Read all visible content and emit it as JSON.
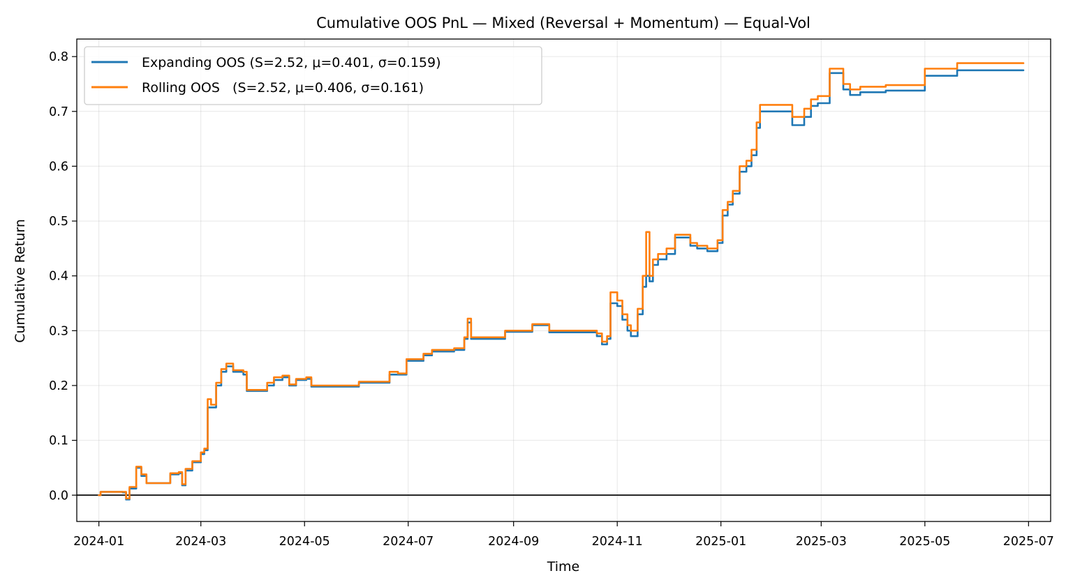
{
  "chart_data": {
    "type": "line",
    "title": "Cumulative OOS PnL — Mixed (Reversal + Momentum) — Equal-Vol",
    "xlabel": "Time",
    "ylabel": "Cumulative Return",
    "x_ticks": [
      "2024-01",
      "2024-03",
      "2024-05",
      "2024-07",
      "2024-09",
      "2024-11",
      "2025-01",
      "2025-03",
      "2025-05",
      "2025-07"
    ],
    "y_ticks": [
      "0.0",
      "0.1",
      "0.2",
      "0.3",
      "0.4",
      "0.5",
      "0.6",
      "0.7",
      "0.8"
    ],
    "xlim": [
      "2023-12-19",
      "2025-07-14"
    ],
    "ylim": [
      -0.048,
      0.832
    ],
    "grid": true,
    "zero_line": true,
    "legend_position": "upper-left",
    "series": [
      {
        "name": "Expanding OOS (S=2.52, μ=0.401, σ=0.159)",
        "color": "#1f77b4",
        "points": [
          [
            "2024-01-01",
            0.0
          ],
          [
            "2024-01-02",
            0.006
          ],
          [
            "2024-01-15",
            0.005
          ],
          [
            "2024-01-17",
            -0.008
          ],
          [
            "2024-01-19",
            0.012
          ],
          [
            "2024-01-23",
            0.05
          ],
          [
            "2024-01-26",
            0.035
          ],
          [
            "2024-01-29",
            0.022
          ],
          [
            "2024-02-10",
            0.022
          ],
          [
            "2024-02-12",
            0.038
          ],
          [
            "2024-02-17",
            0.04
          ],
          [
            "2024-02-19",
            0.018
          ],
          [
            "2024-02-21",
            0.045
          ],
          [
            "2024-02-25",
            0.06
          ],
          [
            "2024-03-01",
            0.075
          ],
          [
            "2024-03-03",
            0.082
          ],
          [
            "2024-03-05",
            0.16
          ],
          [
            "2024-03-07",
            0.16
          ],
          [
            "2024-03-10",
            0.2
          ],
          [
            "2024-03-13",
            0.225
          ],
          [
            "2024-03-16",
            0.235
          ],
          [
            "2024-03-20",
            0.225
          ],
          [
            "2024-03-26",
            0.22
          ],
          [
            "2024-03-28",
            0.19
          ],
          [
            "2024-04-05",
            0.19
          ],
          [
            "2024-04-09",
            0.2
          ],
          [
            "2024-04-13",
            0.21
          ],
          [
            "2024-04-18",
            0.215
          ],
          [
            "2024-04-22",
            0.2
          ],
          [
            "2024-04-26",
            0.21
          ],
          [
            "2024-05-02",
            0.212
          ],
          [
            "2024-05-05",
            0.198
          ],
          [
            "2024-05-31",
            0.198
          ],
          [
            "2024-06-02",
            0.205
          ],
          [
            "2024-06-16",
            0.205
          ],
          [
            "2024-06-20",
            0.22
          ],
          [
            "2024-06-25",
            0.22
          ],
          [
            "2024-06-30",
            0.245
          ],
          [
            "2024-07-10",
            0.255
          ],
          [
            "2024-07-15",
            0.262
          ],
          [
            "2024-07-28",
            0.265
          ],
          [
            "2024-08-03",
            0.285
          ],
          [
            "2024-08-05",
            0.315
          ],
          [
            "2024-08-07",
            0.285
          ],
          [
            "2024-08-25",
            0.285
          ],
          [
            "2024-08-27",
            0.298
          ],
          [
            "2024-09-10",
            0.298
          ],
          [
            "2024-09-12",
            0.31
          ],
          [
            "2024-09-20",
            0.31
          ],
          [
            "2024-09-22",
            0.297
          ],
          [
            "2024-10-12",
            0.297
          ],
          [
            "2024-10-20",
            0.29
          ],
          [
            "2024-10-23",
            0.275
          ],
          [
            "2024-10-26",
            0.285
          ],
          [
            "2024-10-28",
            0.35
          ],
          [
            "2024-11-01",
            0.345
          ],
          [
            "2024-11-04",
            0.32
          ],
          [
            "2024-11-07",
            0.3
          ],
          [
            "2024-11-09",
            0.29
          ],
          [
            "2024-11-13",
            0.33
          ],
          [
            "2024-11-16",
            0.38
          ],
          [
            "2024-11-18",
            0.4
          ],
          [
            "2024-11-20",
            0.39
          ],
          [
            "2024-11-22",
            0.42
          ],
          [
            "2024-11-25",
            0.43
          ],
          [
            "2024-11-28",
            0.43
          ],
          [
            "2024-11-30",
            0.44
          ],
          [
            "2024-12-05",
            0.47
          ],
          [
            "2024-12-12",
            0.47
          ],
          [
            "2024-12-14",
            0.455
          ],
          [
            "2024-12-18",
            0.45
          ],
          [
            "2024-12-24",
            0.445
          ],
          [
            "2024-12-30",
            0.46
          ],
          [
            "2025-01-02",
            0.51
          ],
          [
            "2025-01-05",
            0.53
          ],
          [
            "2025-01-08",
            0.55
          ],
          [
            "2025-01-12",
            0.59
          ],
          [
            "2025-01-16",
            0.6
          ],
          [
            "2025-01-19",
            0.62
          ],
          [
            "2025-01-22",
            0.67
          ],
          [
            "2025-01-24",
            0.7
          ],
          [
            "2025-02-10",
            0.7
          ],
          [
            "2025-02-12",
            0.675
          ],
          [
            "2025-02-16",
            0.675
          ],
          [
            "2025-02-19",
            0.69
          ],
          [
            "2025-02-23",
            0.71
          ],
          [
            "2025-02-27",
            0.715
          ],
          [
            "2025-03-05",
            0.715
          ],
          [
            "2025-03-06",
            0.77
          ],
          [
            "2025-03-12",
            0.77
          ],
          [
            "2025-03-14",
            0.74
          ],
          [
            "2025-03-18",
            0.73
          ],
          [
            "2025-03-24",
            0.735
          ],
          [
            "2025-04-07",
            0.735
          ],
          [
            "2025-04-08",
            0.738
          ],
          [
            "2025-04-30",
            0.738
          ],
          [
            "2025-05-01",
            0.765
          ],
          [
            "2025-05-19",
            0.765
          ],
          [
            "2025-05-20",
            0.775
          ],
          [
            "2025-06-23",
            0.775
          ],
          [
            "2025-06-28",
            0.775
          ]
        ]
      },
      {
        "name": "Rolling OOS   (S=2.52, μ=0.406, σ=0.161)",
        "color": "#ff7f0e",
        "points": [
          [
            "2024-01-01",
            0.0
          ],
          [
            "2024-01-02",
            0.006
          ],
          [
            "2024-01-15",
            0.006
          ],
          [
            "2024-01-17",
            -0.006
          ],
          [
            "2024-01-19",
            0.015
          ],
          [
            "2024-01-23",
            0.052
          ],
          [
            "2024-01-26",
            0.038
          ],
          [
            "2024-01-29",
            0.022
          ],
          [
            "2024-02-10",
            0.022
          ],
          [
            "2024-02-12",
            0.04
          ],
          [
            "2024-02-17",
            0.042
          ],
          [
            "2024-02-19",
            0.02
          ],
          [
            "2024-02-21",
            0.048
          ],
          [
            "2024-02-25",
            0.062
          ],
          [
            "2024-03-01",
            0.078
          ],
          [
            "2024-03-03",
            0.085
          ],
          [
            "2024-03-05",
            0.175
          ],
          [
            "2024-03-07",
            0.165
          ],
          [
            "2024-03-10",
            0.205
          ],
          [
            "2024-03-13",
            0.23
          ],
          [
            "2024-03-16",
            0.24
          ],
          [
            "2024-03-20",
            0.228
          ],
          [
            "2024-03-26",
            0.225
          ],
          [
            "2024-03-28",
            0.192
          ],
          [
            "2024-04-05",
            0.192
          ],
          [
            "2024-04-09",
            0.205
          ],
          [
            "2024-04-13",
            0.215
          ],
          [
            "2024-04-18",
            0.218
          ],
          [
            "2024-04-22",
            0.202
          ],
          [
            "2024-04-26",
            0.212
          ],
          [
            "2024-05-02",
            0.215
          ],
          [
            "2024-05-05",
            0.2
          ],
          [
            "2024-05-31",
            0.2
          ],
          [
            "2024-06-02",
            0.207
          ],
          [
            "2024-06-16",
            0.207
          ],
          [
            "2024-06-20",
            0.225
          ],
          [
            "2024-06-25",
            0.222
          ],
          [
            "2024-06-30",
            0.248
          ],
          [
            "2024-07-10",
            0.258
          ],
          [
            "2024-07-15",
            0.265
          ],
          [
            "2024-07-28",
            0.268
          ],
          [
            "2024-08-03",
            0.288
          ],
          [
            "2024-08-05",
            0.322
          ],
          [
            "2024-08-07",
            0.288
          ],
          [
            "2024-08-25",
            0.288
          ],
          [
            "2024-08-27",
            0.3
          ],
          [
            "2024-09-10",
            0.3
          ],
          [
            "2024-09-12",
            0.312
          ],
          [
            "2024-09-20",
            0.312
          ],
          [
            "2024-09-22",
            0.3
          ],
          [
            "2024-10-12",
            0.3
          ],
          [
            "2024-10-20",
            0.295
          ],
          [
            "2024-10-23",
            0.28
          ],
          [
            "2024-10-26",
            0.29
          ],
          [
            "2024-10-28",
            0.37
          ],
          [
            "2024-11-01",
            0.355
          ],
          [
            "2024-11-04",
            0.33
          ],
          [
            "2024-11-07",
            0.31
          ],
          [
            "2024-11-09",
            0.3
          ],
          [
            "2024-11-13",
            0.34
          ],
          [
            "2024-11-16",
            0.4
          ],
          [
            "2024-11-18",
            0.48
          ],
          [
            "2024-11-20",
            0.4
          ],
          [
            "2024-11-22",
            0.43
          ],
          [
            "2024-11-25",
            0.44
          ],
          [
            "2024-11-28",
            0.44
          ],
          [
            "2024-11-30",
            0.45
          ],
          [
            "2024-12-05",
            0.475
          ],
          [
            "2024-12-12",
            0.475
          ],
          [
            "2024-12-14",
            0.46
          ],
          [
            "2024-12-18",
            0.455
          ],
          [
            "2024-12-24",
            0.45
          ],
          [
            "2024-12-30",
            0.465
          ],
          [
            "2025-01-02",
            0.52
          ],
          [
            "2025-01-05",
            0.535
          ],
          [
            "2025-01-08",
            0.555
          ],
          [
            "2025-01-12",
            0.6
          ],
          [
            "2025-01-16",
            0.61
          ],
          [
            "2025-01-19",
            0.63
          ],
          [
            "2025-01-22",
            0.68
          ],
          [
            "2025-01-24",
            0.712
          ],
          [
            "2025-02-10",
            0.712
          ],
          [
            "2025-02-12",
            0.69
          ],
          [
            "2025-02-16",
            0.69
          ],
          [
            "2025-02-19",
            0.705
          ],
          [
            "2025-02-23",
            0.722
          ],
          [
            "2025-02-27",
            0.728
          ],
          [
            "2025-03-05",
            0.728
          ],
          [
            "2025-03-06",
            0.778
          ],
          [
            "2025-03-12",
            0.778
          ],
          [
            "2025-03-14",
            0.75
          ],
          [
            "2025-03-18",
            0.74
          ],
          [
            "2025-03-24",
            0.745
          ],
          [
            "2025-04-07",
            0.745
          ],
          [
            "2025-04-08",
            0.748
          ],
          [
            "2025-04-30",
            0.748
          ],
          [
            "2025-05-01",
            0.778
          ],
          [
            "2025-05-19",
            0.778
          ],
          [
            "2025-05-20",
            0.788
          ],
          [
            "2025-06-23",
            0.788
          ],
          [
            "2025-06-28",
            0.788
          ]
        ]
      }
    ]
  }
}
